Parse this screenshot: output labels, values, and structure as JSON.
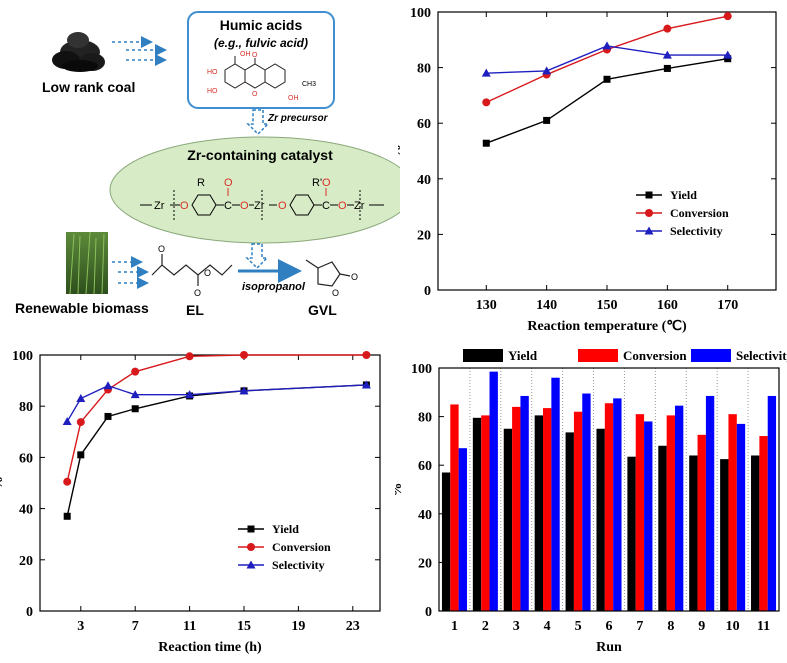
{
  "scheme": {
    "coal_label": "Low rank coal",
    "humic_title": "Humic acids",
    "humic_subtitle": "(e.g., fulvic acid)",
    "precursor": "Zr precursor",
    "catalyst_title": "Zr-containing catalyst",
    "biomass_label": "Renewable biomass",
    "el_label": "EL",
    "solvent": "isopropanol",
    "gvl_label": "GVL",
    "atom_zr": "Zr",
    "atom_o": "O",
    "atom_c": "C",
    "atom_r": "R",
    "atom_r2": "R'",
    "mol_oh": "OH",
    "mol_ho": "HO",
    "mol_o": "O",
    "mol_ch3": "CH3",
    "colors": {
      "box_border": "#3e8ed0",
      "arrow": "#2f7fc1",
      "ellipse_fill": "#d7ebc6",
      "ellipse_stroke": "#8aa87a",
      "oxygen": "#d73027"
    }
  },
  "chart_data": [
    {
      "type": "line",
      "xlabel": "Reaction temperature (℃)",
      "ylabel": "%",
      "x": [
        130,
        140,
        150,
        160,
        170
      ],
      "xticks": [
        "130",
        "140",
        "150",
        "160",
        "170"
      ],
      "yticks": [
        "0",
        "20",
        "40",
        "60",
        "80",
        "100"
      ],
      "xlim": [
        122,
        178
      ],
      "ylim": [
        0,
        100
      ],
      "legend_position": "center-right",
      "series": [
        {
          "name": "Yield",
          "values": [
            52.8,
            61.0,
            75.8,
            79.7,
            83.2
          ],
          "color": "#000000",
          "marker": "square"
        },
        {
          "name": "Conversion",
          "values": [
            67.5,
            77.5,
            86.5,
            94.0,
            98.5
          ],
          "color": "#d7191c",
          "marker": "circle"
        },
        {
          "name": "Selectivity",
          "values": [
            78.0,
            78.8,
            87.8,
            84.5,
            84.5
          ],
          "color": "#1f1fbf",
          "marker": "triangle"
        }
      ]
    },
    {
      "type": "line",
      "xlabel": "Reaction time (h)",
      "ylabel": "%",
      "x": [
        2,
        3,
        5,
        7,
        11,
        15,
        24
      ],
      "xticks": [
        "3",
        "7",
        "11",
        "15",
        "19",
        "23"
      ],
      "xtick_values": [
        3,
        7,
        11,
        15,
        19,
        23
      ],
      "yticks": [
        "0",
        "20",
        "40",
        "60",
        "80",
        "100"
      ],
      "xlim": [
        0,
        25
      ],
      "ylim": [
        0,
        100
      ],
      "legend_position": "bottom-right",
      "series": [
        {
          "name": "Yield",
          "values": [
            37.0,
            61.0,
            76.0,
            79.0,
            84.0,
            86.0,
            88.3
          ],
          "color": "#000000",
          "marker": "square"
        },
        {
          "name": "Conversion",
          "values": [
            50.5,
            73.8,
            86.5,
            93.5,
            99.5,
            100.0,
            100.0
          ],
          "color": "#d7191c",
          "marker": "circle"
        },
        {
          "name": "Selectivity",
          "values": [
            74.0,
            83.0,
            88.0,
            84.5,
            84.5,
            86.0,
            88.3
          ],
          "color": "#1f1fbf",
          "marker": "triangle"
        }
      ]
    },
    {
      "type": "bar",
      "xlabel": "Run",
      "ylabel": "%",
      "categories": [
        "1",
        "2",
        "3",
        "4",
        "5",
        "6",
        "7",
        "8",
        "9",
        "10",
        "11"
      ],
      "yticks": [
        "0",
        "20",
        "40",
        "60",
        "80",
        "100"
      ],
      "ylim": [
        0,
        100
      ],
      "legend_position": "top",
      "series": [
        {
          "name": "Yield",
          "values": [
            57.0,
            79.5,
            75.0,
            80.5,
            73.5,
            75.0,
            63.5,
            68.0,
            64.0,
            62.5,
            64.0
          ],
          "color": "#000000"
        },
        {
          "name": "Conversion",
          "values": [
            85.0,
            80.5,
            84.0,
            83.5,
            82.0,
            85.5,
            81.0,
            80.5,
            72.5,
            81.0,
            72.0
          ],
          "color": "#ff0000"
        },
        {
          "name": "Selectivity",
          "values": [
            67.0,
            98.5,
            88.5,
            96.0,
            89.5,
            87.5,
            78.0,
            84.5,
            88.5,
            77.0,
            88.5
          ],
          "color": "#0000ff"
        }
      ]
    }
  ]
}
